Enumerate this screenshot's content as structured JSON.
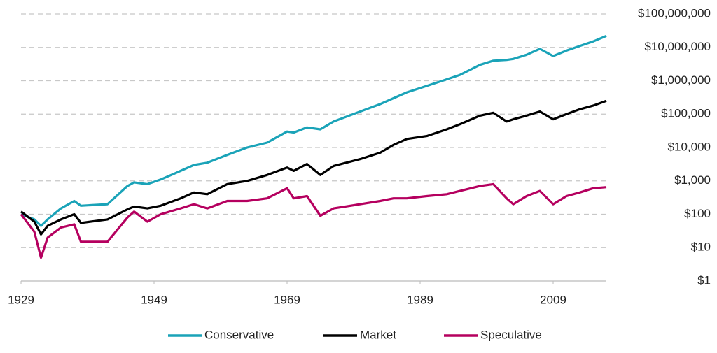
{
  "chart_data": {
    "type": "line",
    "y_scale": "log",
    "grid": true,
    "legend": "bottom",
    "x": [
      1929,
      1931,
      1932,
      1933,
      1935,
      1937,
      1938,
      1942,
      1945,
      1946,
      1948,
      1950,
      1953,
      1955,
      1957,
      1960,
      1963,
      1966,
      1969,
      1970,
      1972,
      1974,
      1976,
      1980,
      1983,
      1985,
      1987,
      1990,
      1993,
      1995,
      1998,
      2000,
      2002,
      2003,
      2005,
      2007,
      2009,
      2011,
      2013,
      2015,
      2017
    ],
    "xlim": [
      1929,
      2017
    ],
    "xticks": [
      1929,
      1949,
      1969,
      1989,
      2009
    ],
    "ylim": [
      1,
      100000000
    ],
    "yticks": [
      {
        "value": 1,
        "label": "$1"
      },
      {
        "value": 10,
        "label": "$10"
      },
      {
        "value": 100,
        "label": "$100"
      },
      {
        "value": 1000,
        "label": "$1,000"
      },
      {
        "value": 10000,
        "label": "$10,000"
      },
      {
        "value": 100000,
        "label": "$100,000"
      },
      {
        "value": 1000000,
        "label": "$1,000,000"
      },
      {
        "value": 10000000,
        "label": "$10,000,000"
      },
      {
        "value": 100000000,
        "label": "$100,000,000"
      }
    ],
    "series": [
      {
        "name": "Conservative",
        "color": "#1aa3b8",
        "values": [
          100,
          70,
          45,
          70,
          150,
          250,
          180,
          200,
          700,
          900,
          800,
          1100,
          2000,
          3000,
          3500,
          6000,
          10000,
          14000,
          30000,
          28000,
          40000,
          35000,
          60000,
          120000,
          200000,
          300000,
          450000,
          700000,
          1100000,
          1500000,
          3000000,
          4000000,
          4200000,
          4500000,
          6000000,
          9000000,
          5500000,
          8000000,
          11000000,
          15000000,
          22000000
        ]
      },
      {
        "name": "Market",
        "color": "#000000",
        "values": [
          120,
          60,
          25,
          45,
          70,
          100,
          55,
          70,
          140,
          170,
          150,
          180,
          300,
          450,
          400,
          800,
          1000,
          1500,
          2500,
          2000,
          3200,
          1500,
          2800,
          4500,
          7000,
          12000,
          18000,
          22000,
          35000,
          50000,
          90000,
          110000,
          60000,
          70000,
          90000,
          120000,
          70000,
          100000,
          140000,
          180000,
          250000
        ]
      },
      {
        "name": "Speculative",
        "color": "#b5005f",
        "values": [
          100,
          30,
          5,
          20,
          40,
          50,
          15,
          15,
          80,
          120,
          60,
          100,
          150,
          200,
          150,
          250,
          250,
          300,
          600,
          300,
          350,
          90,
          150,
          200,
          250,
          300,
          300,
          350,
          400,
          500,
          700,
          800,
          300,
          200,
          350,
          500,
          200,
          350,
          450,
          600,
          650
        ]
      }
    ]
  }
}
